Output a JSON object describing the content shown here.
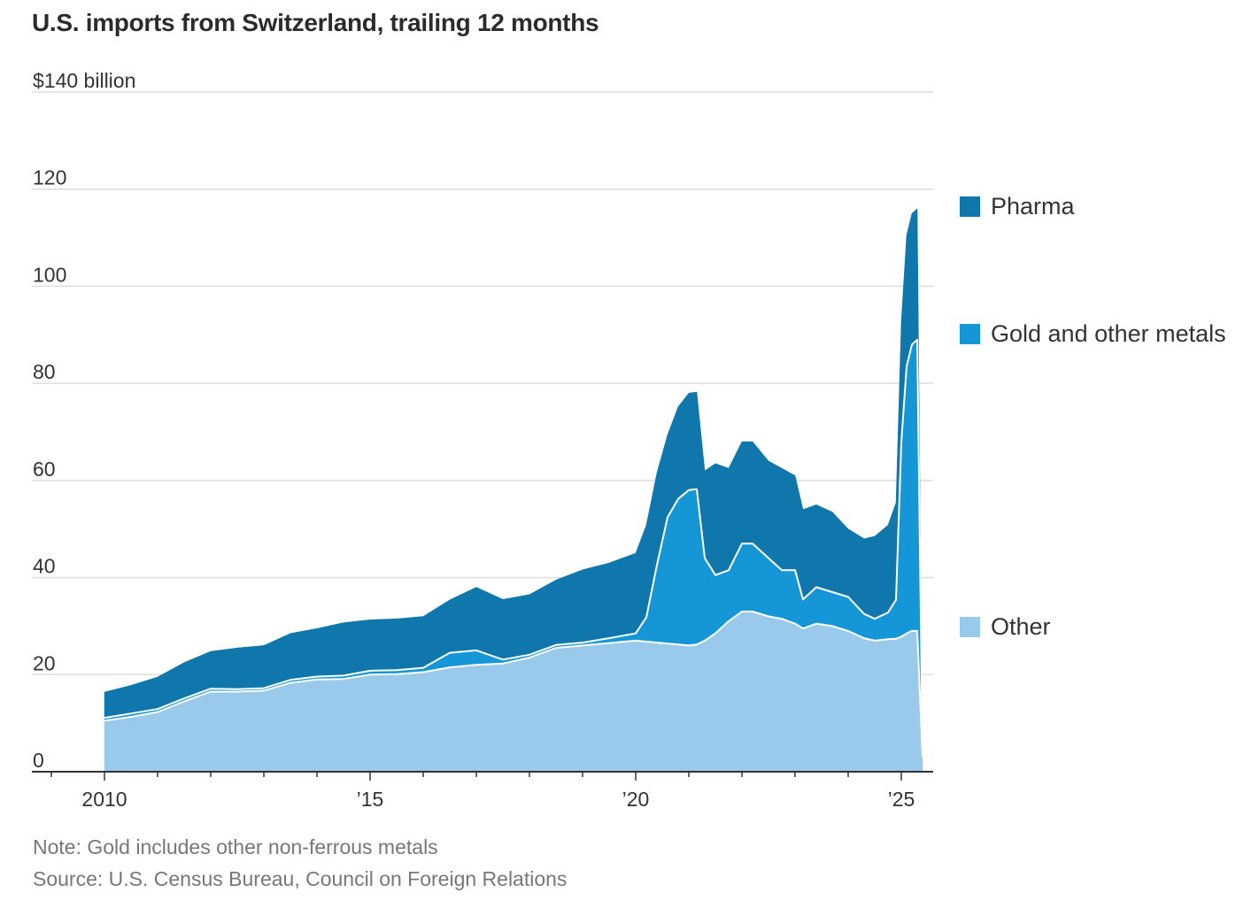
{
  "chart_data": {
    "type": "area",
    "stacked": true,
    "title": "U.S. imports from Switzerland, trailing 12 months",
    "ylabel": "",
    "xlabel": "",
    "y_unit_label": "$140 billion",
    "ylim": [
      0,
      140
    ],
    "xlim": [
      2008.7,
      2025.65
    ],
    "y_ticks": [
      0,
      20,
      40,
      60,
      80,
      100,
      120,
      140
    ],
    "y_tick_labels": [
      "0",
      "20",
      "40",
      "60",
      "80",
      "100",
      "120",
      "$140 billion"
    ],
    "x_ticks": [
      2010,
      2015,
      2020,
      2025
    ],
    "x_tick_labels": [
      "2010",
      "’15",
      "’20",
      "’25"
    ],
    "grid": true,
    "legend_position": "right, each label level with its band",
    "colors": {
      "Pharma": "#1077ad",
      "Gold and other metals": "#1597d7",
      "Other": "#9acaeb",
      "separator": "#ffffff",
      "gridline": "#dddddd",
      "axis": "#333333"
    },
    "x": [
      2010.0,
      2010.5,
      2011.0,
      2011.5,
      2012.0,
      2012.5,
      2013.0,
      2013.5,
      2014.0,
      2014.5,
      2015.0,
      2015.5,
      2016.0,
      2016.5,
      2017.0,
      2017.5,
      2018.0,
      2018.5,
      2019.0,
      2019.5,
      2020.0,
      2020.2,
      2020.4,
      2020.6,
      2020.8,
      2021.0,
      2021.15,
      2021.3,
      2021.5,
      2021.75,
      2022.0,
      2022.2,
      2022.5,
      2022.75,
      2023.0,
      2023.15,
      2023.4,
      2023.7,
      2024.0,
      2024.3,
      2024.5,
      2024.75,
      2024.9,
      2025.0,
      2025.1,
      2025.2,
      2025.3,
      2025.4
    ],
    "series": [
      {
        "name": "Other",
        "values": [
          10.5,
          11.3,
          12.3,
          14.5,
          16.5,
          16.5,
          16.7,
          18.3,
          19.0,
          19.1,
          20.0,
          20.1,
          20.5,
          21.5,
          22.0,
          22.3,
          23.5,
          25.5,
          26.0,
          26.5,
          27.0,
          26.8,
          26.6,
          26.4,
          26.2,
          26.0,
          26.2,
          27.0,
          28.5,
          31.0,
          33.0,
          33.0,
          32.0,
          31.5,
          30.5,
          29.5,
          30.5,
          30.0,
          29.0,
          27.5,
          27.0,
          27.3,
          27.4,
          27.8,
          28.5,
          29.0,
          29.0,
          3.0
        ]
      },
      {
        "name": "Gold and other metals",
        "values": [
          0.6,
          0.7,
          0.6,
          0.6,
          0.6,
          0.5,
          0.5,
          0.6,
          0.6,
          0.7,
          0.8,
          0.8,
          0.9,
          3.0,
          3.0,
          0.8,
          0.6,
          0.6,
          0.6,
          1.0,
          1.5,
          5.0,
          16.0,
          26.0,
          30.0,
          32.0,
          32.0,
          17.0,
          12.0,
          10.5,
          14.0,
          14.0,
          12.0,
          10.0,
          11.0,
          6.0,
          7.5,
          7.0,
          7.0,
          5.0,
          4.5,
          5.5,
          8.0,
          40.0,
          55.0,
          59.0,
          60.0,
          0.5
        ]
      },
      {
        "name": "Pharma",
        "values": [
          5.3,
          5.8,
          6.6,
          7.4,
          7.7,
          8.5,
          8.8,
          9.6,
          9.9,
          10.9,
          10.5,
          10.6,
          10.6,
          10.9,
          13.0,
          12.4,
          12.4,
          13.4,
          15.0,
          15.5,
          16.5,
          19.0,
          19.0,
          17.0,
          19.0,
          20.0,
          20.0,
          18.0,
          23.0,
          21.0,
          21.0,
          21.0,
          20.0,
          21.0,
          19.5,
          18.5,
          17.0,
          16.5,
          14.0,
          15.5,
          17.0,
          18.0,
          20.0,
          25.0,
          27.0,
          27.0,
          27.0,
          1.0
        ]
      }
    ]
  },
  "note": "Note: Gold includes other non-ferrous metals",
  "source": "Source: U.S. Census Bureau, Council on Foreign Relations"
}
